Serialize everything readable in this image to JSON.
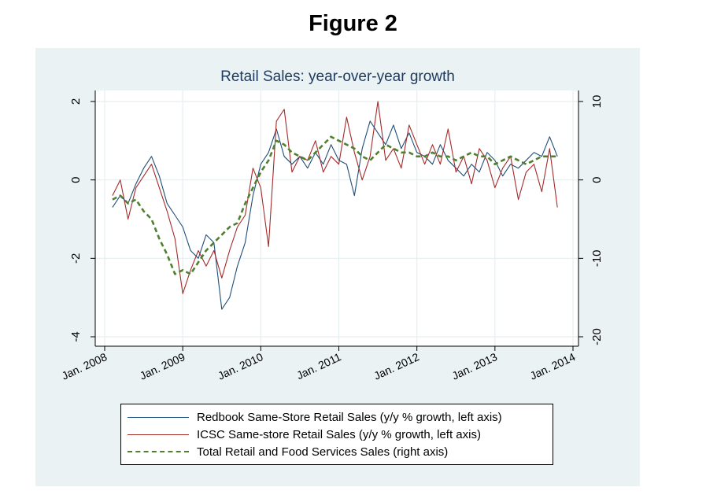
{
  "figure_heading": "Figure 2",
  "chart_data": {
    "type": "line",
    "title": "Retail Sales: year-over-year growth",
    "x_ticks": [
      "Jan. 2008",
      "Jan. 2009",
      "Jan. 2010",
      "Jan. 2011",
      "Jan. 2012",
      "Jan. 2013",
      "Jan. 2014"
    ],
    "xlim": [
      "2008-01",
      "2014-01"
    ],
    "left_axis": {
      "ticks": [
        "2",
        "0",
        "-2",
        "-4"
      ],
      "ylim": [
        -4,
        2
      ]
    },
    "right_axis": {
      "ticks": [
        "10",
        "0",
        "-10",
        "-20"
      ],
      "ylim": [
        -20,
        10
      ]
    },
    "grid": true,
    "legend_position": "bottom",
    "series": [
      {
        "name": "Redbook Same-Store Retail Sales (y/y % growth, left axis)",
        "axis": "left",
        "color": "#1f4e79",
        "x": [
          2008.1,
          2008.2,
          2008.3,
          2008.4,
          2008.5,
          2008.6,
          2008.7,
          2008.8,
          2008.9,
          2009.0,
          2009.1,
          2009.2,
          2009.3,
          2009.4,
          2009.5,
          2009.6,
          2009.7,
          2009.8,
          2009.9,
          2010.0,
          2010.1,
          2010.2,
          2010.3,
          2010.4,
          2010.5,
          2010.6,
          2010.7,
          2010.8,
          2010.9,
          2011.0,
          2011.1,
          2011.2,
          2011.3,
          2011.4,
          2011.5,
          2011.6,
          2011.7,
          2011.8,
          2011.9,
          2012.0,
          2012.1,
          2012.2,
          2012.3,
          2012.4,
          2012.5,
          2012.6,
          2012.7,
          2012.8,
          2012.9,
          2013.0,
          2013.1,
          2013.2,
          2013.3,
          2013.4,
          2013.5,
          2013.6,
          2013.7,
          2013.8
        ],
        "y": [
          -0.7,
          -0.4,
          -0.6,
          -0.1,
          0.3,
          0.6,
          0.1,
          -0.6,
          -0.9,
          -1.2,
          -1.8,
          -2.0,
          -1.4,
          -1.6,
          -3.3,
          -3.0,
          -2.2,
          -1.6,
          -0.4,
          0.4,
          0.7,
          1.3,
          0.6,
          0.4,
          0.6,
          0.3,
          0.7,
          0.4,
          0.9,
          0.5,
          0.4,
          -0.4,
          0.8,
          1.5,
          1.2,
          0.9,
          1.4,
          0.8,
          1.2,
          0.7,
          0.6,
          0.4,
          0.9,
          0.5,
          0.3,
          0.1,
          0.4,
          0.2,
          0.7,
          0.5,
          0.1,
          0.4,
          0.3,
          0.5,
          0.7,
          0.6,
          1.1,
          0.6
        ]
      },
      {
        "name": "ICSC Same-store Retail Sales (y/y % growth, left axis)",
        "axis": "left",
        "color": "#a52a2a",
        "x": [
          2008.1,
          2008.2,
          2008.3,
          2008.4,
          2008.5,
          2008.6,
          2008.7,
          2008.8,
          2008.9,
          2009.0,
          2009.1,
          2009.2,
          2009.3,
          2009.4,
          2009.5,
          2009.6,
          2009.7,
          2009.8,
          2009.9,
          2010.0,
          2010.1,
          2010.2,
          2010.3,
          2010.4,
          2010.5,
          2010.6,
          2010.7,
          2010.8,
          2010.9,
          2011.0,
          2011.1,
          2011.2,
          2011.3,
          2011.4,
          2011.5,
          2011.6,
          2011.7,
          2011.8,
          2011.9,
          2012.0,
          2012.1,
          2012.2,
          2012.3,
          2012.4,
          2012.5,
          2012.6,
          2012.7,
          2012.8,
          2012.9,
          2013.0,
          2013.1,
          2013.2,
          2013.3,
          2013.4,
          2013.5,
          2013.6,
          2013.7,
          2013.8
        ],
        "y": [
          -0.4,
          0.0,
          -1.0,
          -0.2,
          0.1,
          0.4,
          -0.2,
          -0.8,
          -1.5,
          -2.9,
          -2.3,
          -1.8,
          -2.2,
          -1.8,
          -2.5,
          -1.8,
          -1.2,
          -0.9,
          0.3,
          -0.2,
          -1.7,
          1.5,
          1.8,
          0.2,
          0.6,
          0.5,
          1.0,
          0.2,
          0.6,
          0.4,
          1.6,
          0.7,
          0.0,
          0.6,
          2.0,
          0.5,
          0.8,
          0.3,
          1.4,
          0.9,
          0.4,
          0.9,
          0.4,
          1.3,
          0.2,
          0.6,
          -0.1,
          0.8,
          0.5,
          -0.2,
          0.3,
          0.6,
          -0.5,
          0.2,
          0.4,
          -0.3,
          0.8,
          -0.7
        ]
      },
      {
        "name": "Total Retail and Food Services Sales (right axis)",
        "axis": "right",
        "color": "#4f7f2f",
        "dashed": true,
        "x": [
          2008.1,
          2008.2,
          2008.3,
          2008.4,
          2008.5,
          2008.6,
          2008.7,
          2008.8,
          2008.9,
          2009.0,
          2009.1,
          2009.2,
          2009.3,
          2009.4,
          2009.5,
          2009.6,
          2009.7,
          2009.8,
          2009.9,
          2010.0,
          2010.1,
          2010.2,
          2010.3,
          2010.4,
          2010.5,
          2010.6,
          2010.7,
          2010.8,
          2010.9,
          2011.0,
          2011.1,
          2011.2,
          2011.3,
          2011.4,
          2011.5,
          2011.6,
          2011.7,
          2011.8,
          2011.9,
          2012.0,
          2012.1,
          2012.2,
          2012.3,
          2012.4,
          2012.5,
          2012.6,
          2012.7,
          2012.8,
          2012.9,
          2013.0,
          2013.1,
          2013.2,
          2013.3,
          2013.4,
          2013.5,
          2013.6,
          2013.7,
          2013.8
        ],
        "y": [
          -2.5,
          -2.0,
          -3.0,
          -2.5,
          -4.0,
          -5.0,
          -7.5,
          -9.5,
          -12.0,
          -11.5,
          -12.0,
          -10.5,
          -9.0,
          -8.0,
          -7.0,
          -6.0,
          -5.5,
          -3.0,
          -1.0,
          1.0,
          2.5,
          5.0,
          4.5,
          3.5,
          3.0,
          2.5,
          3.5,
          4.5,
          5.5,
          5.0,
          4.5,
          4.0,
          3.0,
          2.5,
          3.5,
          4.5,
          4.0,
          3.5,
          3.5,
          3.0,
          3.0,
          3.5,
          3.0,
          3.0,
          2.5,
          3.0,
          3.5,
          3.0,
          3.0,
          2.0,
          2.5,
          3.0,
          2.5,
          2.0,
          2.5,
          3.0,
          3.0,
          3.0
        ]
      }
    ]
  }
}
